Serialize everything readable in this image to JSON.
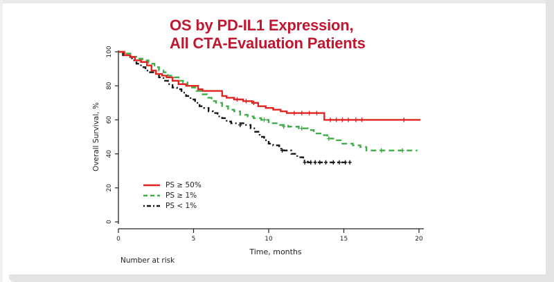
{
  "page": {
    "title_lines": [
      "OS by PD-IL1 Expression,",
      "All CTA-Evaluation Patients"
    ],
    "title_color": "#c01731",
    "frame_color": "#e4e4e4"
  },
  "chart_data": {
    "type": "line",
    "subtype": "kaplan_meier_step",
    "title": "OS by PD-IL1 Expression, All CTA-Evaluation Patients",
    "xlabel": "Time, months",
    "ylabel": "Overall Survival, %",
    "footnote": "Number at risk",
    "xlim": [
      0,
      20
    ],
    "ylim": [
      0,
      100
    ],
    "xticks": [
      0,
      5,
      10,
      15,
      20
    ],
    "yticks": [
      0,
      20,
      40,
      60,
      80,
      100
    ],
    "grid": false,
    "legend_position": "inside lower-left",
    "axis_color": "#222222",
    "series": [
      {
        "name": "PS ≥ 50%",
        "color": "#e32322",
        "line_style": "solid",
        "points": [
          [
            0,
            100
          ],
          [
            0.4,
            98
          ],
          [
            0.8,
            97
          ],
          [
            1.1,
            95
          ],
          [
            1.5,
            94
          ],
          [
            1.9,
            92
          ],
          [
            2.2,
            89
          ],
          [
            2.5,
            87
          ],
          [
            2.9,
            86
          ],
          [
            3.2,
            85
          ],
          [
            3.6,
            83
          ],
          [
            4.0,
            81
          ],
          [
            4.5,
            80
          ],
          [
            5.3,
            78
          ],
          [
            5.6,
            77
          ],
          [
            6.9,
            74
          ],
          [
            7.2,
            73
          ],
          [
            7.7,
            72
          ],
          [
            8.3,
            71
          ],
          [
            8.9,
            70
          ],
          [
            9.3,
            68
          ],
          [
            9.8,
            67
          ],
          [
            10.3,
            66
          ],
          [
            10.8,
            65
          ],
          [
            11.2,
            64
          ],
          [
            13.7,
            60
          ],
          [
            20.1,
            60
          ]
        ],
        "censor_marks": [
          [
            7.9,
            72
          ],
          [
            8.5,
            71
          ],
          [
            9.0,
            70
          ],
          [
            11.7,
            64
          ],
          [
            12.2,
            64
          ],
          [
            12.7,
            64
          ],
          [
            13.2,
            64
          ],
          [
            14.1,
            60
          ],
          [
            14.5,
            60
          ],
          [
            14.9,
            60
          ],
          [
            15.3,
            60
          ],
          [
            15.8,
            60
          ],
          [
            16.2,
            60
          ],
          [
            19.0,
            60
          ]
        ]
      },
      {
        "name": "PS ≥ 1%",
        "color": "#41ad49",
        "line_style": "dashed",
        "points": [
          [
            0,
            100
          ],
          [
            0.4,
            99
          ],
          [
            0.8,
            97
          ],
          [
            1.2,
            96
          ],
          [
            1.6,
            95
          ],
          [
            2.0,
            93
          ],
          [
            2.4,
            91
          ],
          [
            2.7,
            89
          ],
          [
            3.0,
            88
          ],
          [
            3.3,
            86
          ],
          [
            3.7,
            85
          ],
          [
            4.0,
            83
          ],
          [
            4.3,
            82
          ],
          [
            4.6,
            80
          ],
          [
            4.9,
            79
          ],
          [
            5.2,
            77
          ],
          [
            5.5,
            75
          ],
          [
            5.9,
            73
          ],
          [
            6.2,
            71
          ],
          [
            6.5,
            70
          ],
          [
            6.9,
            68
          ],
          [
            7.3,
            66
          ],
          [
            7.7,
            65
          ],
          [
            8.1,
            63
          ],
          [
            8.6,
            62
          ],
          [
            9.0,
            61
          ],
          [
            9.5,
            60
          ],
          [
            10.0,
            58
          ],
          [
            10.6,
            57
          ],
          [
            11.3,
            56
          ],
          [
            12.0,
            55
          ],
          [
            12.6,
            54
          ],
          [
            13.0,
            52
          ],
          [
            13.5,
            51
          ],
          [
            13.9,
            49
          ],
          [
            14.4,
            48
          ],
          [
            14.8,
            46
          ],
          [
            15.6,
            45
          ],
          [
            16.1,
            44
          ],
          [
            16.5,
            42
          ],
          [
            19.9,
            42
          ]
        ],
        "censor_marks": [
          [
            9.7,
            60
          ],
          [
            11.0,
            56
          ],
          [
            12.2,
            55
          ],
          [
            14.0,
            49
          ],
          [
            17.5,
            42
          ],
          [
            18.9,
            42
          ]
        ]
      },
      {
        "name": "PS < 1%",
        "color": "#161616",
        "line_style": "dash_dot",
        "points": [
          [
            0,
            100
          ],
          [
            0.3,
            98
          ],
          [
            0.6,
            97
          ],
          [
            0.9,
            95
          ],
          [
            1.2,
            93
          ],
          [
            1.5,
            91
          ],
          [
            1.8,
            89
          ],
          [
            2.1,
            88
          ],
          [
            2.4,
            87
          ],
          [
            2.7,
            85
          ],
          [
            3.0,
            83
          ],
          [
            3.3,
            81
          ],
          [
            3.6,
            79
          ],
          [
            3.9,
            78
          ],
          [
            4.2,
            76
          ],
          [
            4.5,
            74
          ],
          [
            4.8,
            72
          ],
          [
            5.1,
            70
          ],
          [
            5.4,
            68
          ],
          [
            5.7,
            67
          ],
          [
            6.0,
            65
          ],
          [
            6.3,
            64
          ],
          [
            6.6,
            62
          ],
          [
            6.9,
            61
          ],
          [
            7.2,
            59
          ],
          [
            7.5,
            58
          ],
          [
            8.4,
            57
          ],
          [
            8.8,
            55
          ],
          [
            9.1,
            53
          ],
          [
            9.4,
            50
          ],
          [
            9.7,
            48
          ],
          [
            10.0,
            46
          ],
          [
            10.3,
            45
          ],
          [
            10.7,
            43
          ],
          [
            11.0,
            42
          ],
          [
            11.5,
            40
          ],
          [
            11.9,
            38
          ],
          [
            12.3,
            36
          ],
          [
            12.6,
            35
          ],
          [
            15.4,
            35
          ]
        ],
        "censor_marks": [
          [
            8.1,
            57
          ],
          [
            10.9,
            42
          ],
          [
            12.4,
            35
          ],
          [
            12.8,
            35
          ],
          [
            13.1,
            35
          ],
          [
            13.4,
            35
          ],
          [
            13.8,
            35
          ],
          [
            14.3,
            35
          ],
          [
            14.7,
            35
          ],
          [
            15.1,
            35
          ],
          [
            15.4,
            35
          ]
        ]
      }
    ]
  }
}
